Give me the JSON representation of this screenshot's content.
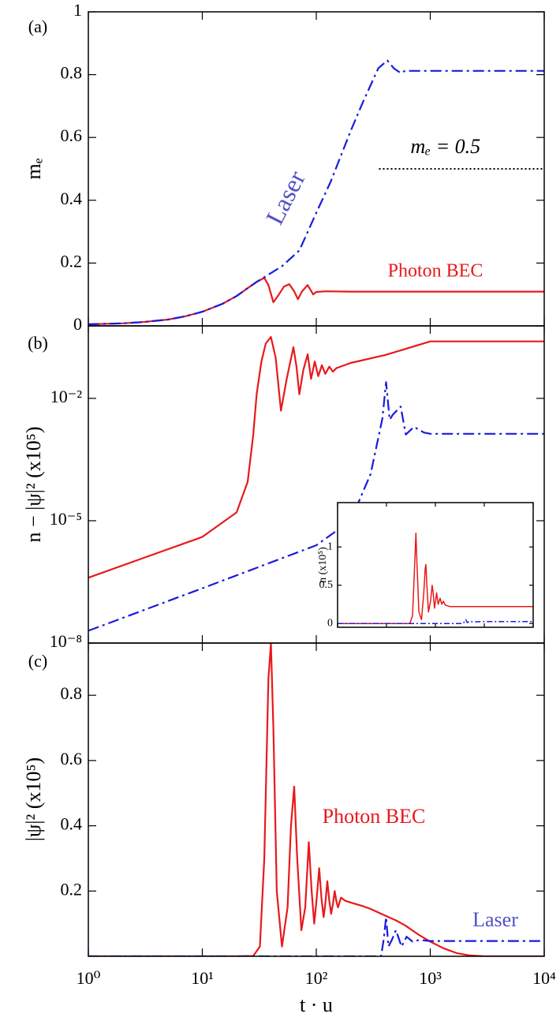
{
  "chart_data": [
    {
      "type": "line",
      "panel_label": "(a)",
      "ylabel": "mₑ",
      "log_x": true,
      "log_y": false,
      "xlim": [
        1,
        10000
      ],
      "ylim": [
        0,
        1
      ],
      "yticks": [
        0,
        0.2,
        0.4,
        0.6,
        0.8,
        1
      ],
      "series": [
        {
          "color": "#e8191c",
          "style": "solid",
          "x": [
            1,
            2,
            3,
            5,
            7,
            10,
            15,
            20,
            25,
            30,
            35,
            38,
            42,
            47,
            52,
            58,
            64,
            69,
            75,
            84,
            94,
            100,
            120,
            200,
            500,
            1000,
            10000
          ],
          "values": [
            0.005,
            0.008,
            0.012,
            0.02,
            0.03,
            0.045,
            0.07,
            0.095,
            0.12,
            0.14,
            0.153,
            0.13,
            0.075,
            0.1,
            0.125,
            0.133,
            0.11,
            0.085,
            0.11,
            0.13,
            0.1,
            0.108,
            0.11,
            0.109,
            0.109,
            0.109,
            0.109
          ]
        },
        {
          "color": "#1a1ae0",
          "style": "dashdot",
          "x": [
            1,
            2,
            3,
            5,
            7,
            10,
            15,
            20,
            25,
            30,
            35,
            50,
            71,
            100,
            134,
            200,
            255,
            350,
            420,
            480,
            550,
            600,
            1000,
            10000
          ],
          "values": [
            0.005,
            0.008,
            0.012,
            0.02,
            0.03,
            0.045,
            0.07,
            0.095,
            0.12,
            0.14,
            0.155,
            0.19,
            0.24,
            0.36,
            0.46,
            0.62,
            0.71,
            0.82,
            0.845,
            0.82,
            0.805,
            0.812,
            0.812,
            0.812
          ]
        }
      ],
      "reference": {
        "label": "mₑ = 0.5",
        "x": [
          355,
          10000
        ],
        "value": 0.5,
        "color": "#000000",
        "style": "dotted"
      },
      "annotations": [
        {
          "text": "Laser",
          "color": "#5050c8"
        },
        {
          "text": "Photon BEC",
          "color": "#e8191c"
        }
      ]
    },
    {
      "type": "line",
      "panel_label": "(b)",
      "ylabel": "n − |ψ|² (x10⁵)",
      "log_x": true,
      "log_y": true,
      "xlim": [
        1,
        10000
      ],
      "ylim": [
        1e-08,
        0.6
      ],
      "yticks": [
        {
          "value": 1e-08,
          "label": "10⁻⁸"
        },
        {
          "value": 1e-05,
          "label": "10⁻⁵"
        },
        {
          "value": 0.01,
          "label": "10⁻²"
        }
      ],
      "series": [
        {
          "color": "#e8191c",
          "style": "solid",
          "x": [
            1,
            3,
            10,
            20,
            25,
            28,
            30,
            33,
            36,
            40,
            44,
            49,
            55,
            63,
            67,
            71,
            77,
            84,
            90,
            97,
            104,
            112,
            120,
            130,
            140,
            150,
            200,
            400,
            1000,
            2000,
            10000
          ],
          "values": [
            4e-07,
            1.2e-06,
            4e-06,
            1.6e-05,
            9e-05,
            0.0013,
            0.0126,
            0.08,
            0.22,
            0.32,
            0.1,
            0.005,
            0.03,
            0.18,
            0.06,
            0.0126,
            0.05,
            0.12,
            0.03,
            0.08,
            0.035,
            0.065,
            0.04,
            0.06,
            0.045,
            0.055,
            0.074,
            0.115,
            0.25,
            0.25,
            0.25
          ]
        },
        {
          "color": "#1a1ae0",
          "style": "dashdot",
          "x": [
            1,
            10,
            100,
            200,
            300,
            380,
            410,
            440,
            470,
            550,
            610,
            720,
            880,
            1000,
            10000
          ],
          "values": [
            2e-08,
            2.2e-07,
            2.5e-06,
            1e-05,
            0.00014,
            0.0032,
            0.025,
            0.003,
            0.004,
            0.0063,
            0.0013,
            0.002,
            0.00145,
            0.00135,
            0.00135
          ]
        }
      ]
    },
    {
      "type": "line",
      "panel_label": "(c)",
      "ylabel": "|ψ|² (x10⁵)",
      "xlabel": "t · u",
      "log_x": true,
      "log_y": false,
      "xlim": [
        1,
        10000
      ],
      "ylim": [
        0,
        0.96
      ],
      "xticks": [
        {
          "value": 1,
          "label": "10⁰"
        },
        {
          "value": 10,
          "label": "10¹"
        },
        {
          "value": 100,
          "label": "10²"
        },
        {
          "value": 1000,
          "label": "10³"
        },
        {
          "value": 10000,
          "label": "10⁴"
        }
      ],
      "yticks": [
        0.2,
        0.4,
        0.6,
        0.8
      ],
      "series": [
        {
          "color": "#e8191c",
          "style": "solid",
          "x": [
            1,
            20,
            28,
            32,
            35,
            38,
            40,
            42,
            45,
            50,
            56,
            60,
            64,
            68,
            74,
            80,
            86,
            91,
            96,
            101,
            106,
            111,
            116,
            120,
            125,
            130,
            135,
            140,
            145,
            150,
            155,
            165,
            180,
            200,
            250,
            300,
            400,
            500,
            600,
            800,
            1000,
            1300,
            1700,
            2200,
            3000,
            10000
          ],
          "values": [
            0,
            0,
            0.001,
            0.03,
            0.3,
            0.85,
            0.96,
            0.7,
            0.2,
            0.03,
            0.15,
            0.4,
            0.52,
            0.3,
            0.08,
            0.15,
            0.35,
            0.2,
            0.1,
            0.18,
            0.27,
            0.18,
            0.12,
            0.16,
            0.23,
            0.17,
            0.13,
            0.16,
            0.2,
            0.17,
            0.15,
            0.18,
            0.17,
            0.165,
            0.155,
            0.145,
            0.125,
            0.11,
            0.095,
            0.065,
            0.045,
            0.025,
            0.01,
            0.003,
            0,
            0
          ]
        },
        {
          "color": "#1a1ae0",
          "style": "dashdot",
          "x": [
            1,
            370,
            390,
            410,
            430,
            460,
            500,
            560,
            620,
            700,
            800,
            1000,
            10000
          ],
          "values": [
            0,
            0,
            0.05,
            0.12,
            0.03,
            0.05,
            0.08,
            0.03,
            0.06,
            0.045,
            0.05,
            0.047,
            0.047
          ]
        }
      ],
      "annotations": [
        {
          "text": "Photon BEC",
          "color": "#e8191c"
        },
        {
          "text": "Laser",
          "color": "#5050c8"
        }
      ]
    },
    {
      "type": "line",
      "ylabel": "n (x10⁵)",
      "log_x": true,
      "log_y": false,
      "xlim": [
        1,
        10000
      ],
      "ylim": [
        -0.05,
        1.58
      ],
      "yticks": [
        0,
        0.5,
        1
      ],
      "series": [
        {
          "color": "#e8191c",
          "style": "solid",
          "x": [
            1,
            30,
            34,
            38,
            40,
            42,
            46,
            52,
            58,
            62,
            64,
            67,
            72,
            80,
            86,
            90,
            96,
            106,
            114,
            125,
            135,
            145,
            160,
            200,
            1000,
            10000
          ],
          "values": [
            0,
            0,
            0.1,
            0.8,
            1.18,
            0.8,
            0.15,
            0.05,
            0.4,
            0.72,
            0.77,
            0.5,
            0.15,
            0.3,
            0.5,
            0.4,
            0.2,
            0.4,
            0.25,
            0.33,
            0.25,
            0.29,
            0.24,
            0.22,
            0.22,
            0.22
          ]
        },
        {
          "color": "#1a1ae0",
          "style": "dashdot",
          "x": [
            1,
            370,
            400,
            420,
            450,
            500,
            600,
            1000,
            10000
          ],
          "values": [
            0,
            0,
            0.03,
            0.05,
            0.01,
            0.03,
            0.02,
            0.025,
            0.025
          ]
        }
      ]
    }
  ]
}
